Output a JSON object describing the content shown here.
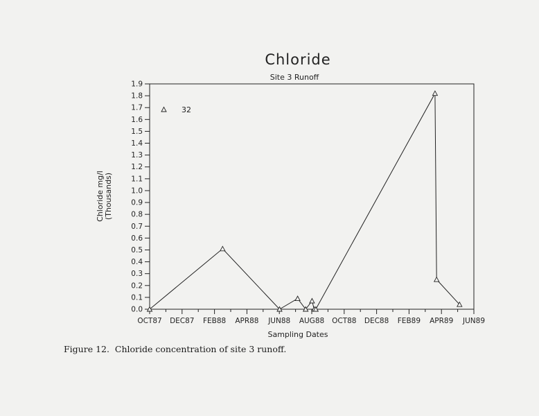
{
  "chart_data": {
    "type": "line",
    "title": "Chloride",
    "subtitle": "Site 3 Runoff",
    "xlabel": "Sampling Dates",
    "ylabel_line1": "Chloride  mg/l",
    "ylabel_line2": "(Thousands)",
    "x_ticks": [
      "OCT87",
      "DEC87",
      "FEB88",
      "APR88",
      "JUN88",
      "AUG88",
      "OCT88",
      "DEC88",
      "FEB89",
      "APR89",
      "JUN89"
    ],
    "y_ticks": [
      "0.0",
      "0.1",
      "0.2",
      "0.3",
      "0.4",
      "0.5",
      "0.6",
      "0.7",
      "0.8",
      "0.9",
      "1.0",
      "1.1",
      "1.2",
      "1.3",
      "1.4",
      "1.5",
      "1.6",
      "1.7",
      "1.8",
      "1.9"
    ],
    "xlim": [
      "1987-10-01",
      "1989-06-01"
    ],
    "ylim": [
      0,
      1.9
    ],
    "grid": false,
    "legend_position": "top-left",
    "series": [
      {
        "name": "32",
        "marker": "triangle",
        "x": [
          "1987-10-01",
          "1988-02-15",
          "1988-06-01",
          "1988-07-05",
          "1988-07-20",
          "1988-08-01",
          "1988-08-05",
          "1988-08-08",
          "1989-03-20",
          "1989-03-23",
          "1989-05-05"
        ],
        "y": [
          0.0,
          0.51,
          0.0,
          0.09,
          0.0,
          0.07,
          0.0,
          0.0,
          1.82,
          0.25,
          0.04
        ]
      }
    ]
  },
  "caption": "Figure 12.  Chloride concentration of site 3 runoff."
}
